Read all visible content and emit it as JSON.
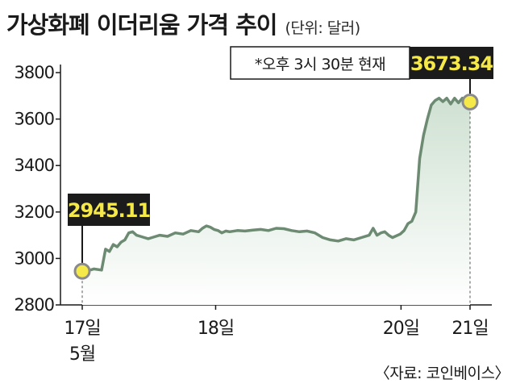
{
  "title": "가상화폐 이더리움 가격 추이",
  "unit": "(단위: 달러)",
  "source": "〈자료: 코인베이스〉",
  "colors": {
    "line": "#6d8a72",
    "area_top": "#cfe1d2",
    "marker": "#f5e94a",
    "label_bg": "#1b1b1b",
    "label_text": "#f5e94a"
  },
  "chart_data": {
    "type": "line",
    "title": "가상화폐 이더리움 가격 추이",
    "unit": "(단위: 달러)",
    "ylim": [
      2800,
      3800
    ],
    "yticks": [
      2800,
      3000,
      3200,
      3400,
      3600,
      3800
    ],
    "xlim": [
      0,
      1
    ],
    "xticks": [
      {
        "x": 0.0,
        "label": "17일",
        "sublabel": "5월"
      },
      {
        "x": 0.344,
        "label": "18일",
        "sublabel": ""
      },
      {
        "x": 0.822,
        "label": "20일",
        "sublabel": ""
      },
      {
        "x": 1.0,
        "label": "21일",
        "sublabel": ""
      }
    ],
    "grid": false,
    "fill": "area",
    "series": [
      {
        "x": [
          0,
          0.01,
          0.03,
          0.05,
          0.06,
          0.07,
          0.08,
          0.09,
          0.1,
          0.11,
          0.12,
          0.13,
          0.14,
          0.15,
          0.16,
          0.17,
          0.18,
          0.19,
          0.2,
          0.22,
          0.24,
          0.26,
          0.28,
          0.3,
          0.31,
          0.32,
          0.33,
          0.34,
          0.35,
          0.36,
          0.37,
          0.38,
          0.4,
          0.42,
          0.44,
          0.46,
          0.48,
          0.5,
          0.52,
          0.54,
          0.56,
          0.58,
          0.6,
          0.62,
          0.64,
          0.66,
          0.68,
          0.7,
          0.72,
          0.74,
          0.75,
          0.76,
          0.77,
          0.78,
          0.79,
          0.8,
          0.82,
          0.83,
          0.84,
          0.85,
          0.86,
          0.87,
          0.88,
          0.89,
          0.9,
          0.91,
          0.92,
          0.93,
          0.94,
          0.95,
          0.96,
          0.97,
          0.98,
          0.99,
          1.0
        ],
        "values": [
          2945.11,
          2945,
          2955,
          2950,
          3040,
          3030,
          3060,
          3050,
          3070,
          3080,
          3110,
          3115,
          3100,
          3095,
          3090,
          3085,
          3090,
          3095,
          3100,
          3095,
          3110,
          3105,
          3120,
          3115,
          3130,
          3140,
          3135,
          3125,
          3120,
          3110,
          3118,
          3115,
          3120,
          3118,
          3122,
          3125,
          3120,
          3130,
          3128,
          3120,
          3115,
          3118,
          3110,
          3090,
          3080,
          3075,
          3085,
          3080,
          3090,
          3100,
          3130,
          3100,
          3110,
          3115,
          3100,
          3090,
          3105,
          3120,
          3150,
          3160,
          3200,
          3430,
          3530,
          3600,
          3660,
          3680,
          3690,
          3675,
          3690,
          3665,
          3690,
          3670,
          3690,
          3685,
          3673.34
        ]
      }
    ],
    "annotations": [
      {
        "x": 0,
        "value": 2945.11,
        "label": "2945.11"
      },
      {
        "x": 1.0,
        "value": 3673.34,
        "label": "3673.34",
        "note": "*오후 3시 30분 현재"
      }
    ]
  }
}
